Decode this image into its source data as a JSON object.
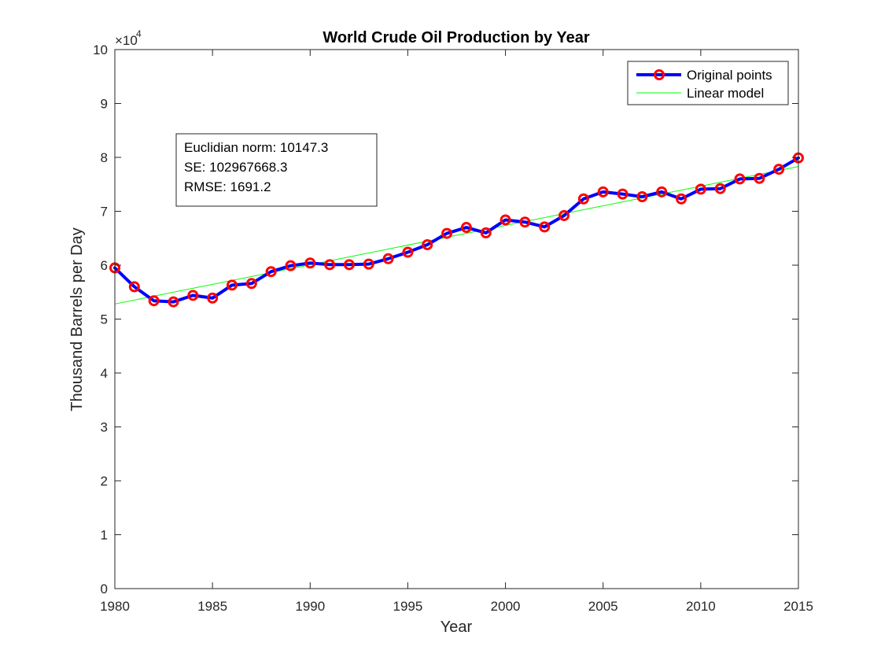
{
  "chart_data": {
    "type": "line",
    "title": "World Crude Oil Production by Year",
    "xlabel": "Year",
    "ylabel": "Thousand Barrels per Day",
    "xlim": [
      1980,
      2015
    ],
    "ylim": [
      0,
      100000
    ],
    "y_exponent_label": "×10",
    "y_exponent_power": "4",
    "x_ticks": [
      1980,
      1985,
      1990,
      1995,
      2000,
      2005,
      2010,
      2015
    ],
    "x_tick_labels": [
      "1980",
      "1985",
      "1990",
      "1995",
      "2000",
      "2005",
      "2010",
      "2015"
    ],
    "y_ticks": [
      0,
      10000,
      20000,
      30000,
      40000,
      50000,
      60000,
      70000,
      80000,
      90000,
      100000
    ],
    "y_tick_labels": [
      "0",
      "1",
      "2",
      "3",
      "4",
      "5",
      "6",
      "7",
      "8",
      "9",
      "10"
    ],
    "grid": false,
    "legend_position": "top-right",
    "x": [
      1980,
      1981,
      1982,
      1983,
      1984,
      1985,
      1986,
      1987,
      1988,
      1989,
      1990,
      1991,
      1992,
      1993,
      1994,
      1995,
      1996,
      1997,
      1998,
      1999,
      2000,
      2001,
      2002,
      2003,
      2004,
      2005,
      2006,
      2007,
      2008,
      2009,
      2010,
      2011,
      2012,
      2013,
      2014,
      2015
    ],
    "series": [
      {
        "name": "Original points",
        "style": "line-with-markers",
        "line_color": "#0000ff",
        "marker_color": "#ff0000",
        "values": [
          59500,
          56000,
          53400,
          53200,
          54400,
          53900,
          56300,
          56600,
          58800,
          59900,
          60400,
          60100,
          60100,
          60200,
          61200,
          62400,
          63800,
          65900,
          67000,
          66000,
          68400,
          68000,
          67100,
          69200,
          72300,
          73600,
          73200,
          72700,
          73600,
          72300,
          74100,
          74200,
          76000,
          76100,
          77800,
          79900
        ]
      },
      {
        "name": "Linear model",
        "style": "line",
        "line_color": "#00ff00",
        "values_at_xlim": [
          52800,
          78300
        ]
      }
    ],
    "annotation": {
      "lines": [
        "Euclidian norm: 10147.3",
        "SE: 102967668.3",
        "RMSE: 1691.2"
      ]
    }
  }
}
